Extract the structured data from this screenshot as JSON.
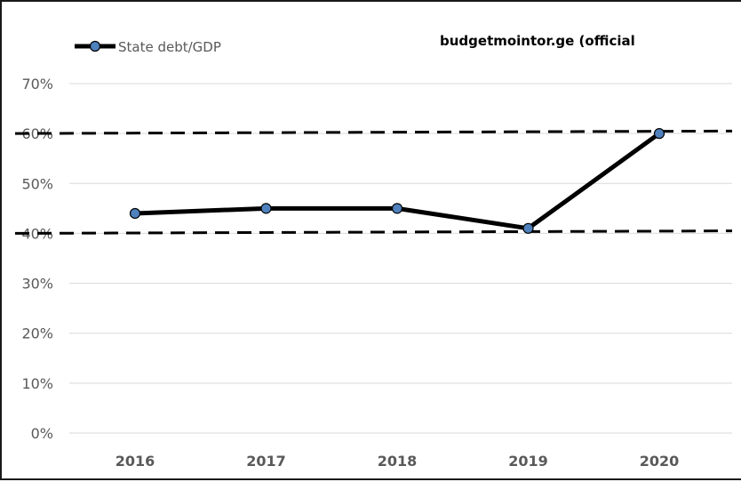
{
  "chart_data": {
    "type": "line",
    "title": "",
    "xlabel": "",
    "ylabel": "",
    "categories": [
      "2016",
      "2017",
      "2018",
      "2019",
      "2020"
    ],
    "series": [
      {
        "name": "State debt/GDP",
        "values": [
          44,
          45,
          45,
          41,
          60
        ],
        "color": "#000000",
        "marker_color": "#4f81bd"
      }
    ],
    "ylim": [
      0,
      70
    ],
    "yticks": [
      0,
      10,
      20,
      30,
      40,
      50,
      60,
      70
    ],
    "ytick_labels": [
      "0%",
      "10%",
      "20%",
      "30%",
      "40%",
      "50%",
      "60%",
      "70%"
    ],
    "grid": true,
    "legend": "top-left",
    "reference_lines": [
      {
        "style": "dashed",
        "start": 40,
        "end": 40.5
      },
      {
        "style": "dashed",
        "start": 60,
        "end": 60.5
      }
    ],
    "annotation": "budgetmointor.ge (official"
  }
}
